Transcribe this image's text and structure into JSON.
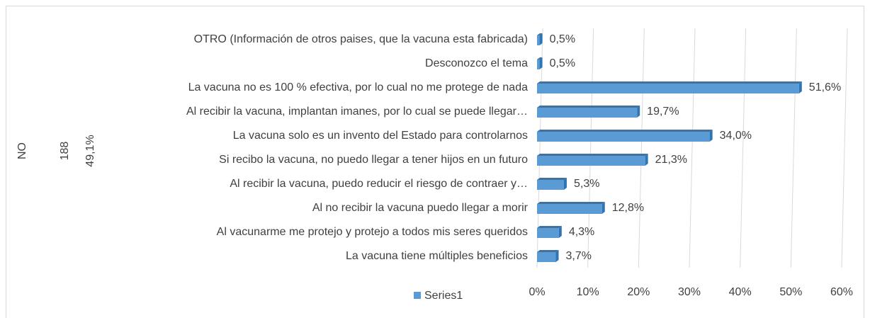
{
  "chart_data": {
    "type": "bar",
    "orientation": "horizontal",
    "side_labels": [
      "NO",
      "188",
      "49,1%"
    ],
    "categories": [
      "OTRO (Información de otros paises, que la vacuna esta fabricada)",
      "Desconozco el tema",
      "La vacuna no es 100 % efectiva, por lo cual no me protege de nada",
      "Al recibir la vacuna, implantan imanes, por lo cual se puede llegar…",
      "La vacuna solo es un invento del Estado para controlarnos",
      "Si recibo la vacuna, no puedo llegar a tener hijos en un futuro",
      "Al recibir la vacuna, puedo reducir el riesgo de contraer y…",
      "Al no recibir la vacuna puedo llegar a morir",
      "Al vacunarme me protejo y protejo a todos mis seres queridos",
      "La vacuna tiene múltiples beneficios"
    ],
    "series": [
      {
        "name": "Series1",
        "color": "#5b9bd5",
        "values": [
          0.5,
          0.5,
          51.6,
          19.7,
          34.0,
          21.3,
          5.3,
          12.8,
          4.3,
          3.7
        ],
        "value_labels": [
          "0,5%",
          "0,5%",
          "51,6%",
          "19,7%",
          "34,0%",
          "21,3%",
          "5,3%",
          "12,8%",
          "4,3%",
          "3,7%"
        ]
      }
    ],
    "xlim": [
      0,
      60
    ],
    "xticks": [
      {
        "value": 0,
        "label": "0%"
      },
      {
        "value": 10,
        "label": "10%"
      },
      {
        "value": 20,
        "label": "20%"
      },
      {
        "value": 30,
        "label": "30%"
      },
      {
        "value": 40,
        "label": "40%"
      },
      {
        "value": 50,
        "label": "50%"
      },
      {
        "value": 60,
        "label": "60%"
      }
    ],
    "grid": true,
    "legend": "bottom"
  }
}
